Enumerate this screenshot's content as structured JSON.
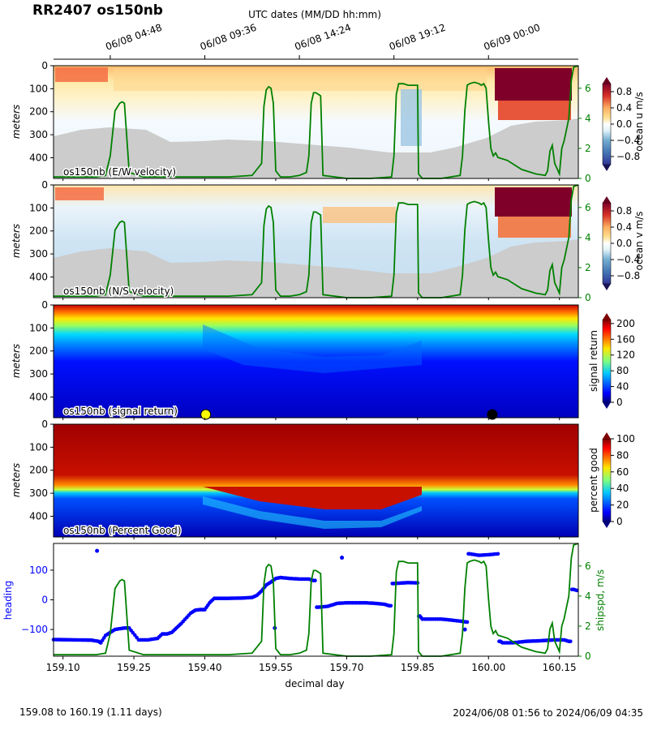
{
  "title": "RR2407 os150nb",
  "top_axis": {
    "label": "UTC dates (MM/DD hh:mm)",
    "ticks": [
      {
        "x": 159.2,
        "label": "06/08 04:48"
      },
      {
        "x": 159.4,
        "label": "06/08 09:36"
      },
      {
        "x": 159.6,
        "label": "06/08 14:24"
      },
      {
        "x": 159.8,
        "label": "06/08 19:12"
      },
      {
        "x": 160.0,
        "label": "06/09 00:00"
      }
    ]
  },
  "x_axis": {
    "label": "decimal day",
    "range": [
      159.08,
      160.19
    ],
    "ticks": [
      "159.10",
      "159.25",
      "159.40",
      "159.55",
      "159.70",
      "159.85",
      "160.00",
      "160.15"
    ]
  },
  "footer": {
    "left": "159.08 to 160.19 (1.11 days)",
    "right": "2024/06/08 01:56 to 2024/06/09 04:35"
  },
  "colors": {
    "shipspd": "#008000",
    "heading": "#0000ff",
    "no_data": "#cccccc",
    "saturated_u_v": "#7f0028"
  },
  "chart_data": [
    {
      "type": "heatmap",
      "panel_label": "os150nb (E/W velocity)",
      "ylabel": "meters",
      "y_ticks": [
        "0",
        "100",
        "200",
        "300",
        "400"
      ],
      "ylim": [
        490,
        0
      ],
      "colorbar": {
        "label": "ocean u m/s",
        "ticks": [
          "0.8",
          "0.4",
          "0.0",
          "−0.4",
          "−0.8"
        ],
        "range": [
          -1.0,
          1.0
        ],
        "colormap": "RdYlBu_r"
      },
      "right_axis": {
        "ticks": [
          "0",
          "2",
          "4",
          "6"
        ],
        "range": [
          0,
          7.5
        ]
      }
    },
    {
      "type": "heatmap",
      "panel_label": "os150nb (N/S velocity)",
      "ylabel": "meters",
      "y_ticks": [
        "0",
        "100",
        "200",
        "300",
        "400"
      ],
      "ylim": [
        490,
        0
      ],
      "colorbar": {
        "label": "ocean v m/s",
        "ticks": [
          "0.8",
          "0.4",
          "0.0",
          "−0.4",
          "−0.8"
        ],
        "range": [
          -1.0,
          1.0
        ],
        "colormap": "RdYlBu_r"
      },
      "right_axis": {
        "ticks": [
          "0",
          "2",
          "4",
          "6"
        ],
        "range": [
          0,
          7.5
        ]
      }
    },
    {
      "type": "heatmap",
      "panel_label": "os150nb (signal return)",
      "ylabel": "meters",
      "y_ticks": [
        "0",
        "100",
        "200",
        "300",
        "400"
      ],
      "ylim": [
        490,
        0
      ],
      "colorbar": {
        "label": "signal return",
        "ticks": [
          "200",
          "160",
          "120",
          "80",
          "40",
          "0"
        ],
        "range": [
          0,
          210
        ],
        "colormap": "jet"
      },
      "markers": [
        {
          "x": 159.402,
          "color": "#ffff00"
        },
        {
          "x": 160.008,
          "color": "#000000"
        }
      ]
    },
    {
      "type": "heatmap",
      "panel_label": "os150nb (Percent Good)",
      "ylabel": "meters",
      "y_ticks": [
        "0",
        "100",
        "200",
        "300",
        "400"
      ],
      "ylim": [
        490,
        0
      ],
      "colorbar": {
        "label": "percent good",
        "ticks": [
          "100",
          "80",
          "60",
          "40",
          "20",
          "0"
        ],
        "range": [
          0,
          100
        ],
        "colormap": "jet"
      }
    },
    {
      "type": "line",
      "ylabel": "heading",
      "right_ylabel": "shipspd, m/s",
      "y_ticks": [
        "100",
        "0",
        "−100"
      ],
      "ylim": [
        -190,
        190
      ],
      "right_ticks": [
        "0",
        "2",
        "4",
        "6"
      ],
      "right_ylim": [
        0,
        7.5
      ],
      "series": [
        {
          "name": "shipspd",
          "x": [
            159.08,
            159.17,
            159.19,
            159.2,
            159.21,
            159.22,
            159.225,
            159.23,
            159.24,
            159.27,
            159.3,
            159.35,
            159.4,
            159.45,
            159.5,
            159.52,
            159.525,
            159.53,
            159.535,
            159.54,
            159.545,
            159.55,
            159.56,
            159.58,
            159.6,
            159.615,
            159.62,
            159.625,
            159.63,
            159.635,
            159.64,
            159.645,
            159.65,
            159.7,
            159.75,
            159.795,
            159.8,
            159.805,
            159.81,
            159.82,
            159.83,
            159.84,
            159.85,
            159.852,
            159.86,
            159.9,
            159.94,
            159.945,
            159.95,
            159.955,
            159.96,
            159.97,
            159.98,
            159.985,
            159.99,
            159.995,
            160.0,
            160.005,
            160.01,
            160.015,
            160.02,
            160.04,
            160.07,
            160.1,
            160.12,
            160.125,
            160.13,
            160.135,
            160.14,
            160.15,
            160.155,
            160.16,
            160.17,
            160.175,
            160.18,
            160.19
          ],
          "values": [
            0.1,
            0.1,
            0.2,
            1.5,
            4.5,
            5.0,
            5.1,
            5.0,
            0.4,
            0.1,
            0.1,
            0.1,
            0.1,
            0.1,
            0.2,
            1.0,
            4.8,
            5.9,
            6.1,
            6.0,
            5.0,
            0.5,
            0.1,
            0.1,
            0.2,
            0.4,
            1.5,
            5.0,
            5.7,
            5.7,
            5.6,
            5.5,
            0.2,
            0.0,
            0.0,
            0.1,
            1.5,
            5.6,
            6.3,
            6.3,
            6.2,
            6.2,
            6.2,
            0.3,
            0.0,
            0.0,
            0.2,
            1.5,
            4.5,
            6.2,
            6.3,
            6.4,
            6.3,
            6.2,
            6.3,
            6.0,
            3.8,
            2.0,
            1.5,
            1.7,
            1.4,
            1.2,
            0.6,
            0.3,
            0.2,
            0.5,
            1.8,
            2.2,
            1.0,
            0.3,
            2.0,
            2.5,
            4.0,
            6.5,
            7.4,
            7.5
          ]
        },
        {
          "name": "heading",
          "x": [
            159.08,
            159.12,
            159.16,
            159.175,
            159.18,
            159.19,
            159.2,
            159.21,
            159.23,
            159.24,
            159.26,
            159.28,
            159.3,
            159.31,
            159.32,
            159.33,
            159.34,
            159.35,
            159.37,
            159.38,
            159.39,
            159.395,
            159.4,
            159.41,
            159.42,
            159.45,
            159.48,
            159.5,
            159.51,
            159.52,
            159.53,
            159.54,
            159.55,
            159.56,
            159.58,
            159.6,
            159.62,
            159.63,
            159.64,
            159.66,
            159.68,
            159.7,
            159.72,
            159.74,
            159.76,
            159.78,
            159.79,
            159.8,
            159.83,
            159.85,
            159.855,
            159.86,
            159.88,
            159.9,
            159.92,
            159.94,
            159.955,
            159.96,
            159.98,
            160.0,
            160.02,
            160.025,
            160.03,
            160.05,
            160.08,
            160.11,
            160.14,
            160.16,
            160.17,
            160.18,
            160.19
          ],
          "values": [
            -134,
            -135,
            -136,
            -140,
            -145,
            -120,
            -110,
            -100,
            -95,
            -95,
            -135,
            -135,
            -130,
            -115,
            -115,
            -110,
            -95,
            -80,
            -45,
            -35,
            -33,
            -33,
            -33,
            -10,
            5,
            5,
            6,
            8,
            15,
            30,
            50,
            60,
            72,
            75,
            72,
            70,
            70,
            65,
            -25,
            -22,
            -12,
            -10,
            -10,
            -10,
            -12,
            -15,
            -20,
            55,
            58,
            57,
            -55,
            -65,
            -65,
            -65,
            -68,
            -72,
            -75,
            155,
            150,
            152,
            155,
            -140,
            -145,
            -145,
            -140,
            -138,
            -135,
            -135,
            -140,
            35,
            30
          ]
        }
      ],
      "isolated_points": [
        {
          "x": 159.172,
          "y": 165
        },
        {
          "x": 159.548,
          "y": -95
        },
        {
          "x": 159.69,
          "y": 142
        },
        {
          "x": 159.95,
          "y": -100
        }
      ]
    }
  ]
}
